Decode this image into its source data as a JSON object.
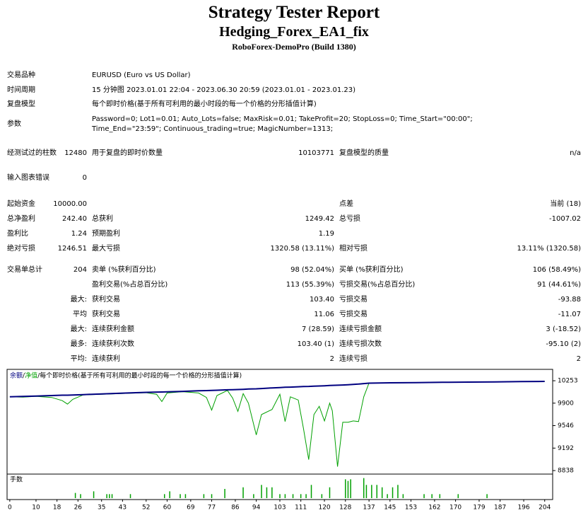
{
  "header": {
    "title": "Strategy Tester Report",
    "subtitle": "Hedging_Forex_EA1_fix",
    "broker": "RoboForex-DemoPro (Build 1380)"
  },
  "info": [
    {
      "label": "交易品种",
      "value": "EURUSD (Euro vs US Dollar)"
    },
    {
      "label": "时间周期",
      "value": "15 分钟图 2023.01.01 22:04 - 2023.06.30 20:59 (2023.01.01 - 2023.01.23)"
    },
    {
      "label": "复盘模型",
      "value": "每个即时价格(基于所有可利用的最小时段的每一个价格的分形插值计算)"
    },
    {
      "label": "参数",
      "value": "Password=0; Lot1=0.01; Auto_Lots=false; MaxRisk=0.01; TakeProfit=20; StopLoss=0; Time_Start=\"00:00\"; Time_End=\"23:59\"; Continuous_trading=true; MagicNumber=1313;"
    }
  ],
  "stats": [
    {
      "c1": {
        "label": "经测试过的柱数",
        "value": "12480"
      },
      "c2": {
        "label": "用于复盘的即时价数量",
        "value": "10103771"
      },
      "c3": {
        "label": "复盘模型的质量",
        "value": "n/a"
      }
    },
    {
      "c1": {
        "label": "输入图表错误",
        "value": "0"
      }
    },
    {
      "c1": {
        "label": "起始资金",
        "value": "10000.00"
      },
      "c3": {
        "label": "点差",
        "value": "当前 (18)"
      }
    },
    {
      "c1": {
        "label": "总净盈利",
        "value": "242.40"
      },
      "c2": {
        "label": "总获利",
        "value": "1249.42"
      },
      "c3": {
        "label": "总亏损",
        "value": "-1007.02"
      }
    },
    {
      "c1": {
        "label": "盈利比",
        "value": "1.24"
      },
      "c2": {
        "label": "预期盈利",
        "value": "1.19"
      }
    },
    {
      "c1": {
        "label": "绝对亏损",
        "value": "1246.51"
      },
      "c2": {
        "label": "最大亏损",
        "value": "1320.58 (13.11%)"
      },
      "c3": {
        "label": "相对亏损",
        "value": "13.11% (1320.58)"
      }
    },
    {
      "c1": {
        "label": "交易单总计",
        "value": "204"
      },
      "c2": {
        "label": "卖单 (%获利百分比)",
        "value": "98 (52.04%)"
      },
      "c3": {
        "label": "买单 (%获利百分比)",
        "value": "106 (58.49%)"
      }
    },
    {
      "c2": {
        "label": "盈利交易(%占总百分比)",
        "value": "113 (55.39%)"
      },
      "c3": {
        "label": "亏损交易(%占总百分比)",
        "value": "91 (44.61%)"
      }
    }
  ],
  "extremes": [
    {
      "label": "最大:",
      "c2": {
        "label": "获利交易",
        "value": "103.40"
      },
      "c3": {
        "label": "亏损交易",
        "value": "-93.88"
      }
    },
    {
      "label": "平均",
      "c2": {
        "label": "获利交易",
        "value": "11.06"
      },
      "c3": {
        "label": "亏损交易",
        "value": "-11.07"
      }
    },
    {
      "label": "最大:",
      "c2": {
        "label": "连续获利金额",
        "value": "7 (28.59)"
      },
      "c3": {
        "label": "连续亏损金额",
        "value": "3 (-18.52)"
      }
    },
    {
      "label": "最多:",
      "c2": {
        "label": "连续获利次数",
        "value": "103.40 (1)"
      },
      "c3": {
        "label": "连续亏损次数",
        "value": "-95.10 (2)"
      }
    },
    {
      "label": "平均:",
      "c2": {
        "label": "连续获利",
        "value": "2"
      },
      "c3": {
        "label": "连续亏损",
        "value": "2"
      }
    }
  ],
  "chart_data": {
    "type": "line",
    "note": "每个即时价格(基于所有可利用的最小时段的每一个价格的分形插值计算)",
    "x": [
      0,
      5,
      10,
      16,
      20,
      22,
      24,
      28,
      35,
      45,
      52,
      56,
      58,
      60,
      66,
      72,
      75,
      77,
      79,
      83,
      85,
      87,
      89,
      91,
      94,
      96,
      100,
      103,
      105,
      107,
      110,
      112,
      114,
      116,
      118,
      120,
      122,
      123,
      125,
      127,
      129,
      131,
      133,
      135,
      137,
      145,
      155,
      165,
      175,
      185,
      195,
      204
    ],
    "series": [
      {
        "name": "余额",
        "color": "#000080",
        "values": [
          10000,
          10005,
          10012,
          10020,
          10025,
          10026,
          10028,
          10034,
          10045,
          10060,
          10070,
          10075,
          10076,
          10078,
          10086,
          10095,
          10098,
          10100,
          10104,
          10110,
          10112,
          10115,
          10118,
          10122,
          10126,
          10130,
          10140,
          10146,
          10150,
          10153,
          10158,
          10162,
          10164,
          10168,
          10170,
          10174,
          10178,
          10180,
          10183,
          10186,
          10190,
          10195,
          10200,
          10208,
          10215,
          10220,
          10224,
          10228,
          10232,
          10235,
          10239,
          10242.4
        ]
      },
      {
        "name": "净值",
        "color": "#00a000",
        "values": [
          10000,
          9995,
          10008,
          9990,
          9940,
          9885,
          9960,
          10030,
          10040,
          10055,
          10065,
          10040,
          9925,
          10060,
          10080,
          10060,
          9990,
          9790,
          10020,
          10100,
          9980,
          9770,
          10050,
          9900,
          9400,
          9720,
          9800,
          10040,
          9610,
          10000,
          9950,
          9500,
          9010,
          9720,
          9850,
          9620,
          9900,
          9780,
          8900,
          9600,
          9600,
          9620,
          9610,
          10000,
          10215,
          10218,
          10222,
          10226,
          10230,
          10233,
          10238,
          10242.4
        ]
      }
    ],
    "xlim": [
      -0.5,
      206.5
    ],
    "ylim": [
      8805,
      10410
    ],
    "xticks": [
      0,
      10,
      18,
      26,
      35,
      43,
      52,
      60,
      69,
      77,
      86,
      94,
      103,
      111,
      120,
      128,
      137,
      145,
      153,
      162,
      170,
      179,
      187,
      196,
      204
    ],
    "yticks": [
      10253,
      9900,
      9546,
      9192,
      8838
    ],
    "volume": {
      "label": "手数",
      "color": "#00a000",
      "ylim": [
        0,
        0.06
      ],
      "x": [
        25,
        27,
        32,
        37,
        38,
        39,
        46,
        59,
        61,
        65,
        67,
        74,
        77,
        82,
        89,
        93,
        96,
        98,
        100,
        103,
        105,
        108,
        111,
        113,
        115,
        119,
        122,
        128,
        129,
        130,
        135,
        136,
        138,
        140,
        142,
        144,
        146,
        148,
        150,
        158,
        161,
        164,
        171,
        182
      ],
      "values": [
        0.013,
        0.01,
        0.017,
        0.01,
        0.01,
        0.01,
        0.01,
        0.01,
        0.017,
        0.01,
        0.01,
        0.01,
        0.01,
        0.023,
        0.027,
        0.01,
        0.033,
        0.027,
        0.027,
        0.01,
        0.01,
        0.01,
        0.01,
        0.01,
        0.033,
        0.01,
        0.027,
        0.047,
        0.043,
        0.047,
        0.05,
        0.033,
        0.033,
        0.033,
        0.027,
        0.01,
        0.027,
        0.033,
        0.01,
        0.01,
        0.01,
        0.01,
        0.01,
        0.01
      ]
    }
  }
}
